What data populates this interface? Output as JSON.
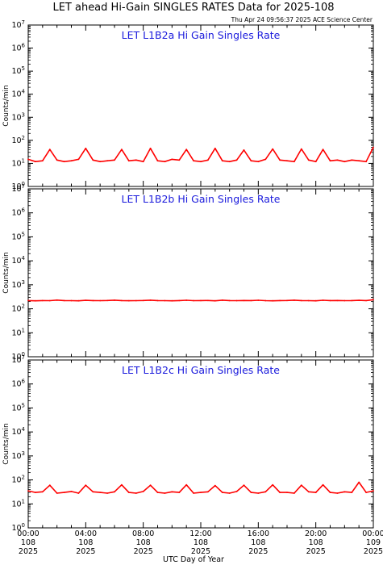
{
  "title": "LET ahead Hi-Gain SINGLES RATES Data for 2025-108",
  "timestamp": "Thu Apr 24 09:56:37 2025 ACE Science Center",
  "xlabel": "UTC Day of Year",
  "colors": {
    "line": "#ff0000",
    "panel_title": "#1a1adc",
    "axes": "#000000"
  },
  "x_ticks": [
    {
      "time": "00:00",
      "day": "108",
      "year": "2025"
    },
    {
      "time": "04:00",
      "day": "108",
      "year": "2025"
    },
    {
      "time": "08:00",
      "day": "108",
      "year": "2025"
    },
    {
      "time": "12:00",
      "day": "108",
      "year": "2025"
    },
    {
      "time": "16:00",
      "day": "108",
      "year": "2025"
    },
    {
      "time": "20:00",
      "day": "108",
      "year": "2025"
    },
    {
      "time": "00:00",
      "day": "109",
      "year": "2025"
    }
  ],
  "chart_data": [
    {
      "type": "line",
      "title": "LET L1B2a Hi Gain Singles Rate",
      "ylabel": "Counts/min",
      "yscale": "log",
      "ylim": [
        1,
        10000000
      ],
      "xlim_hours": [
        0,
        24
      ],
      "x_hours": [
        0,
        0.5,
        1,
        1.5,
        2,
        2.5,
        3,
        3.5,
        4,
        4.5,
        5,
        5.5,
        6,
        6.5,
        7,
        7.5,
        8,
        8.5,
        9,
        9.5,
        10,
        10.5,
        11,
        11.5,
        12,
        12.5,
        13,
        13.5,
        14,
        14.5,
        15,
        15.5,
        16,
        16.5,
        17,
        17.5,
        18,
        18.5,
        19,
        19.5,
        20,
        20.5,
        21,
        21.5,
        22,
        22.5,
        23,
        23.5,
        24
      ],
      "values": [
        15,
        12,
        13,
        40,
        14,
        12,
        13,
        15,
        45,
        14,
        12,
        13,
        14,
        40,
        13,
        14,
        12,
        45,
        13,
        12,
        15,
        14,
        40,
        13,
        12,
        14,
        45,
        13,
        12,
        14,
        38,
        13,
        12,
        15,
        42,
        14,
        13,
        12,
        42,
        14,
        12,
        40,
        13,
        14,
        12,
        14,
        13,
        12,
        50
      ]
    },
    {
      "type": "line",
      "title": "LET L1B2b Hi Gain Singles Rate",
      "ylabel": "Counts/min",
      "yscale": "log",
      "ylim": [
        1,
        10000000
      ],
      "xlim_hours": [
        0,
        24
      ],
      "x_hours": [
        0,
        0.5,
        1,
        1.5,
        2,
        2.5,
        3,
        3.5,
        4,
        4.5,
        5,
        5.5,
        6,
        6.5,
        7,
        7.5,
        8,
        8.5,
        9,
        9.5,
        10,
        10.5,
        11,
        11.5,
        12,
        12.5,
        13,
        13.5,
        14,
        14.5,
        15,
        15.5,
        16,
        16.5,
        17,
        17.5,
        18,
        18.5,
        19,
        19.5,
        20,
        20.5,
        21,
        21.5,
        22,
        22.5,
        23,
        23.5,
        24
      ],
      "values": [
        220,
        215,
        220,
        218,
        230,
        220,
        218,
        215,
        225,
        220,
        218,
        222,
        228,
        220,
        216,
        218,
        222,
        228,
        220,
        218,
        215,
        220,
        226,
        218,
        220,
        222,
        215,
        228,
        220,
        218,
        222,
        220,
        226,
        218,
        215,
        220,
        222,
        228,
        220,
        218,
        215,
        226,
        220,
        222,
        218,
        220,
        225,
        220,
        240
      ]
    },
    {
      "type": "line",
      "title": "LET L1B2c Hi Gain Singles Rate",
      "ylabel": "Counts/min",
      "yscale": "log",
      "ylim": [
        1,
        10000000
      ],
      "xlim_hours": [
        0,
        24
      ],
      "x_hours": [
        0,
        0.5,
        1,
        1.5,
        2,
        2.5,
        3,
        3.5,
        4,
        4.5,
        5,
        5.5,
        6,
        6.5,
        7,
        7.5,
        8,
        8.5,
        9,
        9.5,
        10,
        10.5,
        11,
        11.5,
        12,
        12.5,
        13,
        13.5,
        14,
        14.5,
        15,
        15.5,
        16,
        16.5,
        17,
        17.5,
        18,
        18.5,
        19,
        19.5,
        20,
        20.5,
        21,
        21.5,
        22,
        22.5,
        23,
        23.5,
        24
      ],
      "values": [
        35,
        30,
        32,
        60,
        28,
        30,
        33,
        28,
        60,
        32,
        30,
        28,
        32,
        62,
        30,
        28,
        33,
        60,
        30,
        28,
        32,
        30,
        62,
        28,
        30,
        32,
        58,
        30,
        28,
        33,
        60,
        30,
        28,
        32,
        62,
        30,
        30,
        28,
        60,
        32,
        30,
        62,
        30,
        28,
        32,
        30,
        80,
        30,
        35
      ]
    }
  ]
}
